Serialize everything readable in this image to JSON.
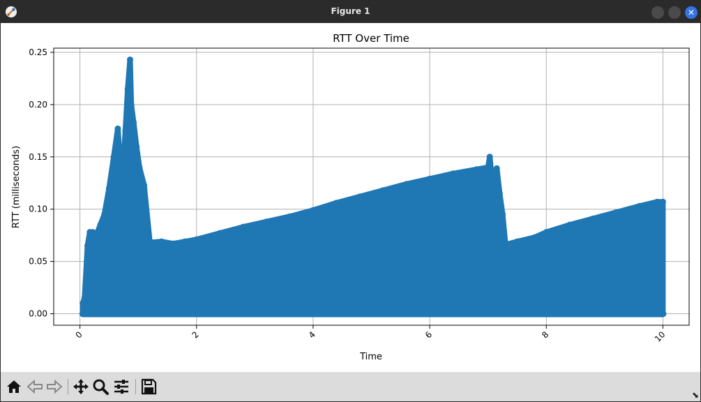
{
  "window": {
    "title": "Figure 1"
  },
  "toolbar": {
    "buttons": [
      {
        "name": "home-button",
        "icon": "home-icon"
      },
      {
        "name": "back-button",
        "icon": "arrow-left-icon"
      },
      {
        "name": "forward-button",
        "icon": "arrow-right-icon"
      },
      {
        "name": "pan-button",
        "icon": "move-icon"
      },
      {
        "name": "zoom-button",
        "icon": "magnifier-icon"
      },
      {
        "name": "configure-subplots-button",
        "icon": "sliders-icon"
      },
      {
        "name": "save-button",
        "icon": "floppy-disk-icon"
      }
    ]
  },
  "chart_data": {
    "type": "line",
    "title": "RTT Over Time",
    "xlabel": "Time",
    "ylabel": "RTT (milliseconds)",
    "xlim": [
      -0.45,
      10.45
    ],
    "ylim": [
      -0.011,
      0.254
    ],
    "xticks": [
      0,
      2,
      4,
      6,
      8,
      10
    ],
    "yticks": [
      "0.00",
      "0.05",
      "0.10",
      "0.15",
      "0.20",
      "0.25"
    ],
    "grid": true,
    "color": "#1f77b4",
    "marker": "o",
    "series": [
      {
        "name": "",
        "x": [
          0.05,
          0.08,
          0.13,
          0.17,
          0.22,
          0.28,
          0.35,
          0.42,
          0.5,
          0.58,
          0.65,
          0.72,
          0.78,
          0.82,
          0.86,
          0.88,
          0.92,
          0.97,
          1.02,
          1.1,
          1.2,
          1.4,
          1.6,
          1.8,
          2.0,
          2.4,
          2.8,
          3.2,
          3.6,
          4.0,
          4.4,
          4.8,
          5.2,
          5.6,
          6.0,
          6.4,
          6.8,
          7.0,
          7.03,
          7.1,
          7.15,
          7.2,
          7.25,
          7.3,
          7.5,
          7.8,
          8.0,
          8.4,
          8.8,
          9.2,
          9.6,
          9.9,
          10.0
        ],
        "y": [
          0.01,
          0.015,
          0.065,
          0.078,
          0.078,
          0.075,
          0.085,
          0.095,
          0.12,
          0.15,
          0.177,
          0.12,
          0.175,
          0.215,
          0.243,
          0.2,
          0.183,
          0.16,
          0.14,
          0.123,
          0.068,
          0.069,
          0.067,
          0.069,
          0.071,
          0.077,
          0.083,
          0.088,
          0.093,
          0.099,
          0.106,
          0.112,
          0.118,
          0.124,
          0.129,
          0.134,
          0.138,
          0.14,
          0.15,
          0.11,
          0.139,
          0.115,
          0.095,
          0.066,
          0.069,
          0.073,
          0.078,
          0.085,
          0.091,
          0.097,
          0.103,
          0.107,
          0.107
        ]
      }
    ]
  }
}
